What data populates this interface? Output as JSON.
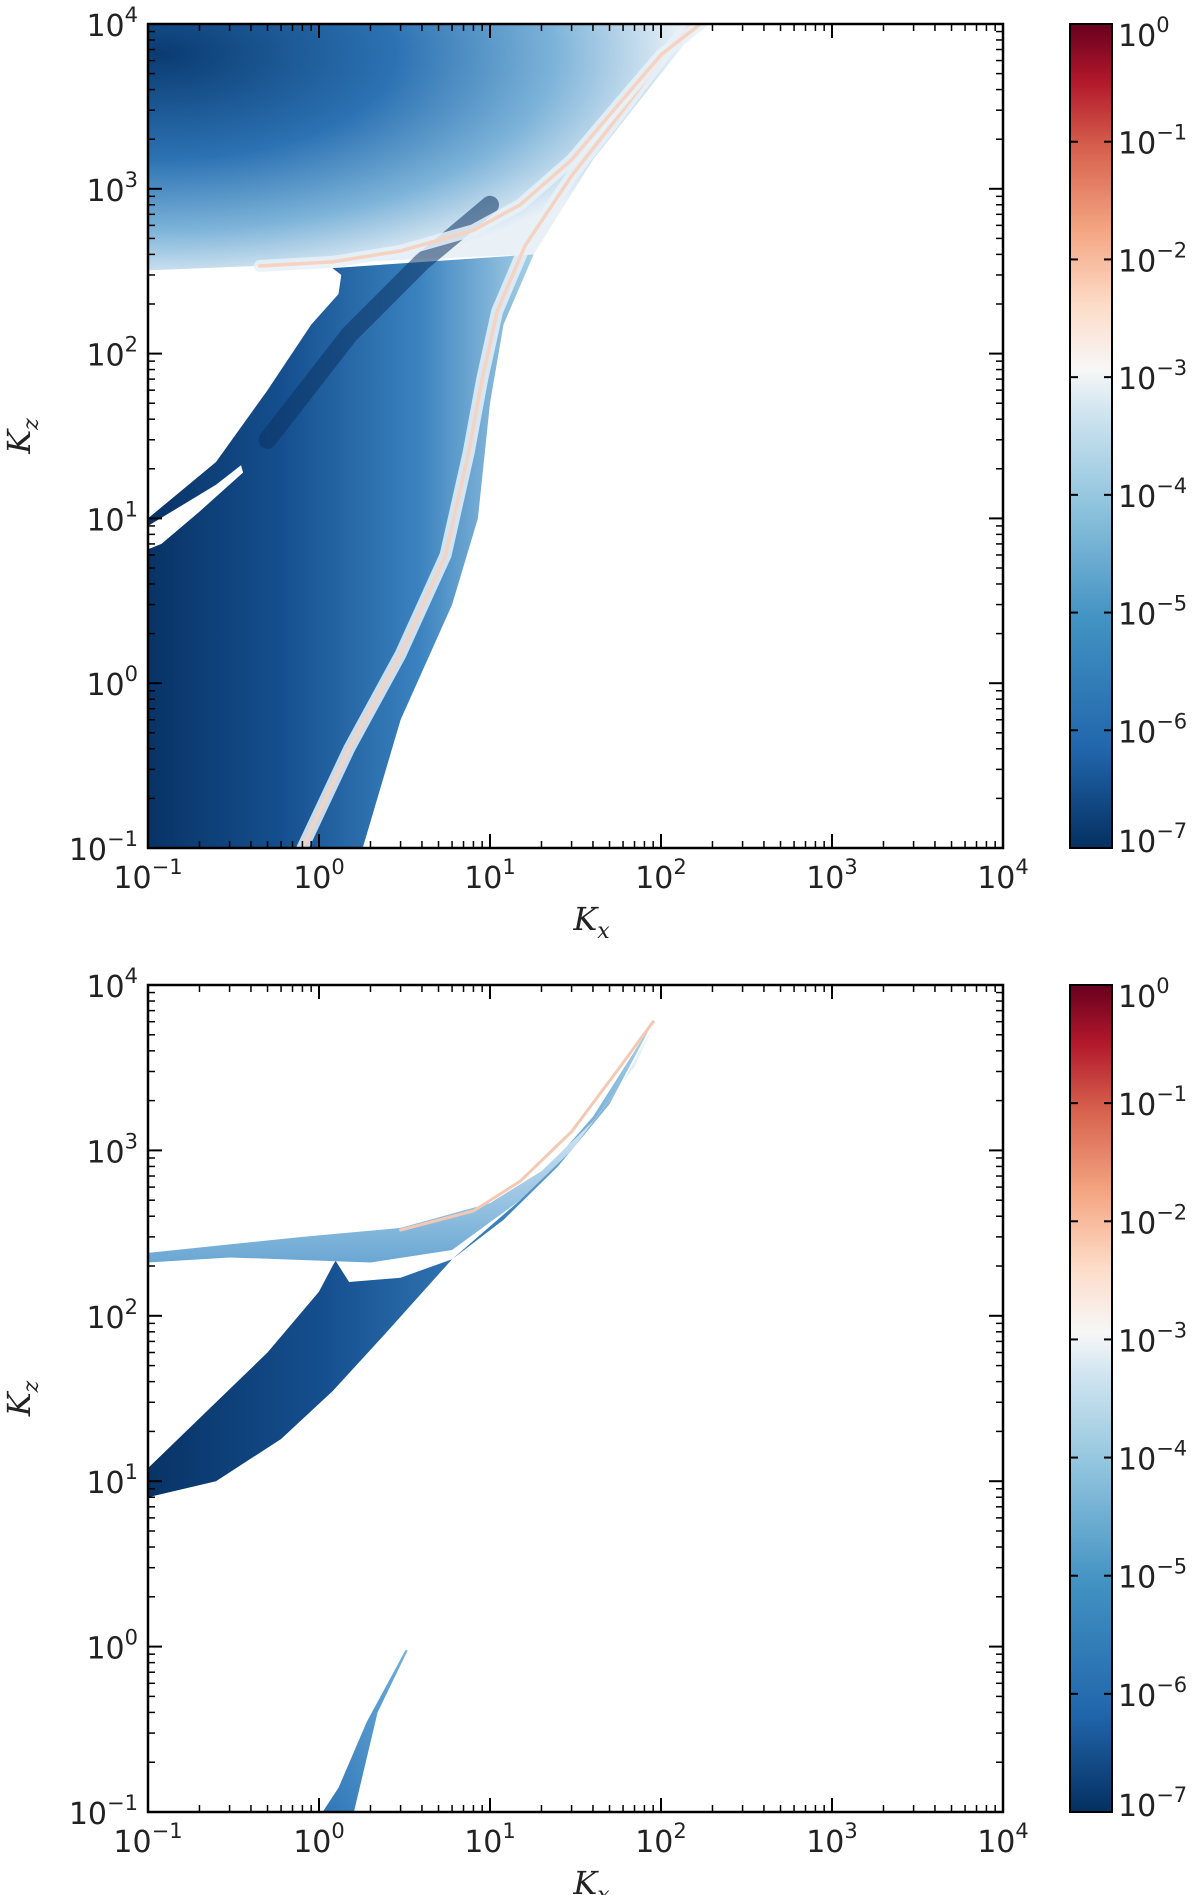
{
  "chart_data": [
    {
      "type": "heatmap",
      "panel": "top",
      "xlabel": "K_x",
      "ylabel": "K_z",
      "xscale": "log",
      "yscale": "log",
      "xlim": [
        0.1,
        10000
      ],
      "ylim": [
        0.1,
        10000
      ],
      "x_ticks": [
        {
          "value": 0.1,
          "base": "10",
          "exp": "−1"
        },
        {
          "value": 1,
          "base": "10",
          "exp": "0"
        },
        {
          "value": 10,
          "base": "10",
          "exp": "1"
        },
        {
          "value": 100,
          "base": "10",
          "exp": "2"
        },
        {
          "value": 1000,
          "base": "10",
          "exp": "3"
        },
        {
          "value": 10000,
          "base": "10",
          "exp": "4"
        }
      ],
      "y_ticks": [
        {
          "value": 0.1,
          "base": "10",
          "exp": "−1"
        },
        {
          "value": 1,
          "base": "10",
          "exp": "0"
        },
        {
          "value": 10,
          "base": "10",
          "exp": "1"
        },
        {
          "value": 100,
          "base": "10",
          "exp": "2"
        },
        {
          "value": 1000,
          "base": "10",
          "exp": "3"
        },
        {
          "value": 10000,
          "base": "10",
          "exp": "4"
        }
      ],
      "colorbar": {
        "scale": "log",
        "range": [
          1e-07,
          1
        ],
        "colormap": "RdBu_r",
        "ticks": [
          {
            "value": 1,
            "base": "10",
            "exp": "0"
          },
          {
            "value": 0.1,
            "base": "10",
            "exp": "−1"
          },
          {
            "value": 0.01,
            "base": "10",
            "exp": "−2"
          },
          {
            "value": 0.001,
            "base": "10",
            "exp": "−3"
          },
          {
            "value": 0.0001,
            "base": "10",
            "exp": "−4"
          },
          {
            "value": 1e-05,
            "base": "10",
            "exp": "−5"
          },
          {
            "value": 1e-06,
            "base": "10",
            "exp": "−6"
          },
          {
            "value": 1e-07,
            "base": "10",
            "exp": "−7"
          }
        ]
      },
      "ridges": [
        {
          "points": [
            [
              0.8,
              0.1
            ],
            [
              1.5,
              0.4
            ],
            [
              3,
              1.5
            ],
            [
              5.5,
              6
            ],
            [
              7.5,
              25
            ],
            [
              9,
              70
            ],
            [
              11,
              180
            ],
            [
              16,
              450
            ],
            [
              30,
              1200
            ],
            [
              60,
              3000
            ],
            [
              110,
              7000
            ],
            [
              150,
              10000
            ]
          ]
        },
        {
          "points": [
            [
              0.45,
              340
            ],
            [
              1.2,
              360
            ],
            [
              3,
              420
            ],
            [
              8,
              560
            ],
            [
              15,
              800
            ],
            [
              30,
              1500
            ],
            [
              60,
              3500
            ],
            [
              100,
              6500
            ],
            [
              170,
              10000
            ]
          ]
        }
      ],
      "boundary": [
        [
          1.8,
          0.1
        ],
        [
          3,
          0.6
        ],
        [
          6,
          3
        ],
        [
          8.5,
          10
        ],
        [
          10,
          50
        ],
        [
          12,
          150
        ],
        [
          18,
          400
        ],
        [
          40,
          1500
        ],
        [
          100,
          5000
        ],
        [
          170,
          10000
        ]
      ]
    },
    {
      "type": "heatmap",
      "panel": "bottom",
      "xlabel": "K_x",
      "ylabel": "K_z",
      "xscale": "log",
      "yscale": "log",
      "xlim": [
        0.1,
        10000
      ],
      "ylim": [
        0.1,
        10000
      ],
      "x_ticks": [
        {
          "value": 0.1,
          "base": "10",
          "exp": "−1"
        },
        {
          "value": 1,
          "base": "10",
          "exp": "0"
        },
        {
          "value": 10,
          "base": "10",
          "exp": "1"
        },
        {
          "value": 100,
          "base": "10",
          "exp": "2"
        },
        {
          "value": 1000,
          "base": "10",
          "exp": "3"
        },
        {
          "value": 10000,
          "base": "10",
          "exp": "4"
        }
      ],
      "y_ticks": [
        {
          "value": 0.1,
          "base": "10",
          "exp": "−1"
        },
        {
          "value": 1,
          "base": "10",
          "exp": "0"
        },
        {
          "value": 10,
          "base": "10",
          "exp": "1"
        },
        {
          "value": 100,
          "base": "10",
          "exp": "2"
        },
        {
          "value": 1000,
          "base": "10",
          "exp": "3"
        },
        {
          "value": 10000,
          "base": "10",
          "exp": "4"
        }
      ],
      "colorbar": {
        "scale": "log",
        "range": [
          1e-07,
          1
        ],
        "colormap": "RdBu_r",
        "ticks": [
          {
            "value": 1,
            "base": "10",
            "exp": "0"
          },
          {
            "value": 0.1,
            "base": "10",
            "exp": "−1"
          },
          {
            "value": 0.01,
            "base": "10",
            "exp": "−2"
          },
          {
            "value": 0.001,
            "base": "10",
            "exp": "−3"
          },
          {
            "value": 0.0001,
            "base": "10",
            "exp": "−4"
          },
          {
            "value": 1e-05,
            "base": "10",
            "exp": "−5"
          },
          {
            "value": 1e-06,
            "base": "10",
            "exp": "−6"
          },
          {
            "value": 1e-07,
            "base": "10",
            "exp": "−7"
          }
        ]
      },
      "regions": [
        {
          "polygon": [
            [
              0.1,
              8
            ],
            [
              0.1,
              12
            ],
            [
              0.5,
              60
            ],
            [
              1.0,
              140
            ],
            [
              1.2,
              200
            ],
            [
              1.25,
              215
            ],
            [
              1.5,
              160
            ],
            [
              3,
              170
            ],
            [
              6,
              220
            ],
            [
              12,
              380
            ],
            [
              25,
              800
            ],
            [
              50,
              1900
            ],
            [
              90,
              6000
            ],
            [
              40,
              1600
            ],
            [
              15,
              500
            ],
            [
              6,
              220
            ],
            [
              2.5,
              80
            ],
            [
              1.2,
              35
            ],
            [
              0.6,
              18
            ],
            [
              0.25,
              10
            ]
          ],
          "level": 1e-07
        },
        {
          "polygon": [
            [
              0.1,
              210
            ],
            [
              0.1,
              240
            ],
            [
              0.8,
              300
            ],
            [
              3,
              340
            ],
            [
              10,
              480
            ],
            [
              20,
              750
            ],
            [
              40,
              1500
            ],
            [
              70,
              3200
            ],
            [
              95,
              6300
            ],
            [
              60,
              2600
            ],
            [
              30,
              1000
            ],
            [
              15,
              500
            ],
            [
              6,
              250
            ],
            [
              2,
              210
            ],
            [
              0.6,
              220
            ],
            [
              0.3,
              225
            ]
          ],
          "level": 3e-05
        },
        {
          "polygon": [
            [
              1.05,
              0.1
            ],
            [
              1.6,
              0.1
            ],
            [
              2.2,
              0.4
            ],
            [
              3.3,
              0.95
            ],
            [
              3.2,
              0.95
            ],
            [
              1.9,
              0.35
            ],
            [
              1.3,
              0.14
            ]
          ],
          "level": 1e-05
        }
      ],
      "ridges": [
        {
          "points": [
            [
              3,
              330
            ],
            [
              8,
              430
            ],
            [
              15,
              650
            ],
            [
              30,
              1300
            ],
            [
              55,
              3000
            ],
            [
              90,
              6000
            ]
          ]
        }
      ]
    }
  ]
}
